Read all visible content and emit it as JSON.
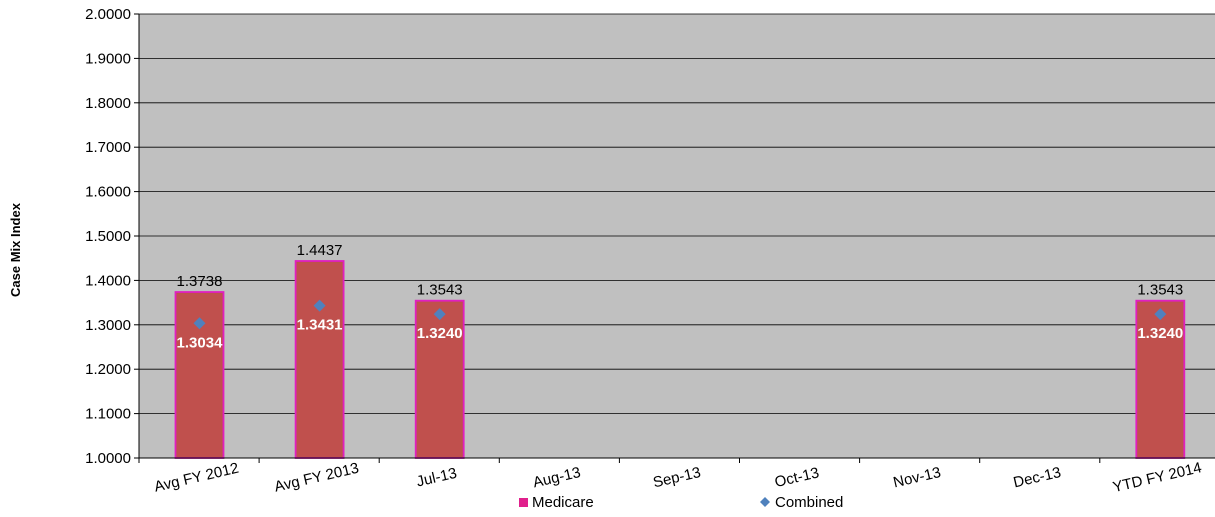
{
  "chart_data": {
    "type": "bar",
    "categories": [
      "Avg FY 2012",
      "Avg FY 2013",
      "Jul-13",
      "Aug-13",
      "Sep-13",
      "Oct-13",
      "Nov-13",
      "Dec-13",
      "YTD FY 2014"
    ],
    "series": [
      {
        "name": "Medicare",
        "type": "bar",
        "color": "#c0504d",
        "edge_color": "#e020c0",
        "values": [
          1.3738,
          1.4437,
          1.3543,
          null,
          null,
          null,
          null,
          null,
          1.3543
        ],
        "labels": [
          "1.3738",
          "1.4437",
          "1.3543",
          "",
          "",
          "",
          "",
          "",
          "1.3543"
        ]
      },
      {
        "name": "Combined",
        "type": "scatter",
        "marker": "diamond",
        "color": "#4f81bd",
        "values": [
          1.3034,
          1.3431,
          1.324,
          null,
          null,
          null,
          null,
          null,
          1.324
        ],
        "labels": [
          "1.3034",
          "1.3431",
          "1.3240",
          "",
          "",
          "",
          "",
          "",
          "1.3240"
        ]
      }
    ],
    "ylabel": "Case Mix Index",
    "xlabel": "",
    "ylim": [
      1.0,
      2.0
    ],
    "yticks": [
      "1.0000",
      "1.1000",
      "1.2000",
      "1.3000",
      "1.4000",
      "1.5000",
      "1.6000",
      "1.7000",
      "1.8000",
      "1.9000",
      "2.0000"
    ],
    "grid": true,
    "plot_background": "#c0c0c0",
    "legend_position": "bottom-center"
  }
}
